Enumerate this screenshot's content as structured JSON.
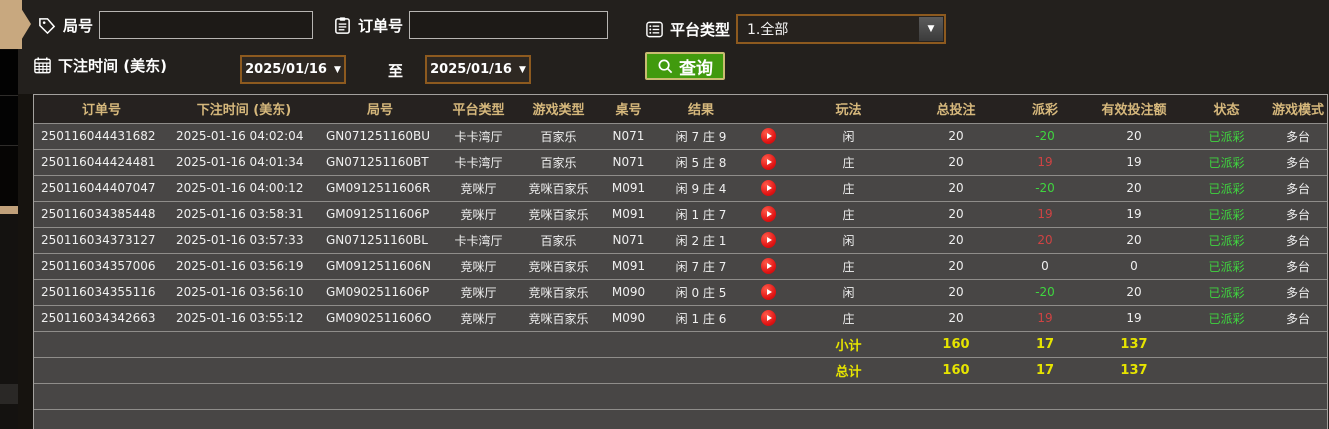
{
  "filters": {
    "round_label": "局号",
    "round_value": "",
    "order_label": "订单号",
    "order_value": "",
    "platform_label": "平台类型",
    "platform_value": "1.全部",
    "bet_time_label": "下注时间 (美东)",
    "date_from": "2025/01/16",
    "to_label": "至",
    "date_to": "2025/01/16",
    "query_label": "查询"
  },
  "table": {
    "headers": [
      "订单号",
      "下注时间 (美东)",
      "局号",
      "平台类型",
      "游戏类型",
      "桌号",
      "结果",
      "",
      "玩法",
      "总投注",
      "派彩",
      "有效投注额",
      "状态",
      "游戏模式"
    ],
    "rows": [
      {
        "order": "250116044431682",
        "time": "2025-01-16 04:02:04",
        "round": "GN071251160BU",
        "platform": "卡卡湾厅",
        "game": "百家乐",
        "table_no": "N071",
        "result": "闲 7 庄 9",
        "play": "闲",
        "total": "20",
        "payout": "-20",
        "valid": "20",
        "status": "已派彩",
        "mode": "多台"
      },
      {
        "order": "250116044424481",
        "time": "2025-01-16 04:01:34",
        "round": "GN071251160BT",
        "platform": "卡卡湾厅",
        "game": "百家乐",
        "table_no": "N071",
        "result": "闲 5 庄 8",
        "play": "庄",
        "total": "20",
        "payout": "19",
        "valid": "19",
        "status": "已派彩",
        "mode": "多台"
      },
      {
        "order": "250116044407047",
        "time": "2025-01-16 04:00:12",
        "round": "GM0912511606R",
        "platform": "竞咪厅",
        "game": "竞咪百家乐",
        "table_no": "M091",
        "result": "闲 9 庄 4",
        "play": "庄",
        "total": "20",
        "payout": "-20",
        "valid": "20",
        "status": "已派彩",
        "mode": "多台"
      },
      {
        "order": "250116034385448",
        "time": "2025-01-16 03:58:31",
        "round": "GM0912511606P",
        "platform": "竞咪厅",
        "game": "竞咪百家乐",
        "table_no": "M091",
        "result": "闲 1 庄 7",
        "play": "庄",
        "total": "20",
        "payout": "19",
        "valid": "19",
        "status": "已派彩",
        "mode": "多台"
      },
      {
        "order": "250116034373127",
        "time": "2025-01-16 03:57:33",
        "round": "GN071251160BL",
        "platform": "卡卡湾厅",
        "game": "百家乐",
        "table_no": "N071",
        "result": "闲 2 庄 1",
        "play": "闲",
        "total": "20",
        "payout": "20",
        "valid": "20",
        "status": "已派彩",
        "mode": "多台"
      },
      {
        "order": "250116034357006",
        "time": "2025-01-16 03:56:19",
        "round": "GM0912511606N",
        "platform": "竞咪厅",
        "game": "竞咪百家乐",
        "table_no": "M091",
        "result": "闲 7 庄 7",
        "play": "庄",
        "total": "20",
        "payout": "0",
        "valid": "0",
        "status": "已派彩",
        "mode": "多台"
      },
      {
        "order": "250116034355116",
        "time": "2025-01-16 03:56:10",
        "round": "GM0902511606P",
        "platform": "竞咪厅",
        "game": "竞咪百家乐",
        "table_no": "M090",
        "result": "闲 0 庄 5",
        "play": "闲",
        "total": "20",
        "payout": "-20",
        "valid": "20",
        "status": "已派彩",
        "mode": "多台"
      },
      {
        "order": "250116034342663",
        "time": "2025-01-16 03:55:12",
        "round": "GM0902511606O",
        "platform": "竞咪厅",
        "game": "竞咪百家乐",
        "table_no": "M090",
        "result": "闲 1 庄 6",
        "play": "庄",
        "total": "20",
        "payout": "19",
        "valid": "19",
        "status": "已派彩",
        "mode": "多台"
      }
    ],
    "subtotal": {
      "label": "小计",
      "total": "160",
      "payout": "17",
      "valid": "137"
    },
    "grand_total": {
      "label": "总计",
      "total": "160",
      "payout": "17",
      "valid": "137"
    }
  },
  "colors": {
    "accent_orange_border": "#8d5a1f",
    "query_green": "#419a0e",
    "header_gold": "#d6b87c",
    "payout_negative_green": "#3fd53f",
    "payout_positive_red": "#cf4343",
    "status_green": "#3fd53f",
    "totals_yellow": "#e6e400",
    "play_icon_red": "#e01212",
    "side_tab_tan": "#c8a87f",
    "row_gray": "#484645"
  }
}
